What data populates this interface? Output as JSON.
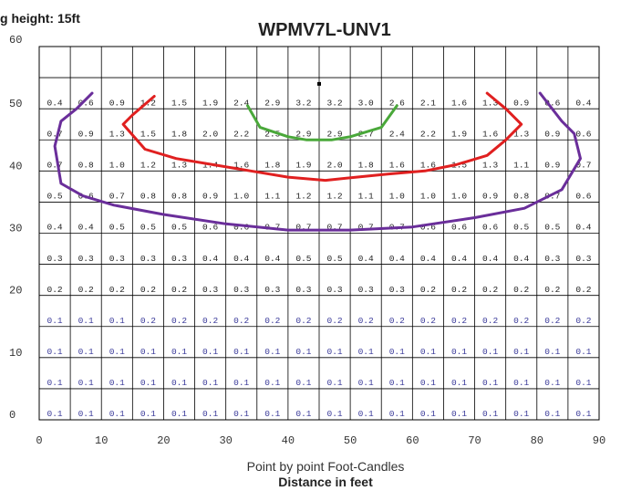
{
  "mount_label": "g height: 15ft",
  "chart_data": {
    "type": "heatmap",
    "title": "WPMV7L-UNV1",
    "subtitle": "Point by point Foot-Candles",
    "xlabel": "Distance in feet",
    "ylabel": "",
    "xlim": [
      0,
      90
    ],
    "ylim": [
      0,
      60
    ],
    "x_ticks": [
      0,
      10,
      20,
      30,
      40,
      50,
      60,
      70,
      80,
      90
    ],
    "y_ticks": [
      0,
      10,
      20,
      30,
      40,
      50,
      60
    ],
    "grid": true,
    "columns_x": [
      2.5,
      7.5,
      12.5,
      17.5,
      22.5,
      27.5,
      32.5,
      37.5,
      42.5,
      47.5,
      52.5,
      57.5,
      62.5,
      67.5,
      72.5,
      77.5,
      82.5,
      87.5
    ],
    "rows": [
      {
        "y": 51,
        "values": [
          "0.4",
          "0.6",
          "0.9",
          "1.2",
          "1.5",
          "1.9",
          "2.4",
          "2.9",
          "3.2",
          "3.2",
          "3.0",
          "2.6",
          "2.1",
          "1.6",
          "1.3",
          "0.9",
          "0.6",
          "0.4"
        ]
      },
      {
        "y": 46,
        "values": [
          "0.7",
          "0.9",
          "1.3",
          "1.5",
          "1.8",
          "2.0",
          "2.2",
          "2.5",
          "2.9",
          "2.9",
          "2.7",
          "2.4",
          "2.2",
          "1.9",
          "1.6",
          "1.3",
          "0.9",
          "0.6"
        ]
      },
      {
        "y": 41,
        "values": [
          "0.7",
          "0.8",
          "1.0",
          "1.2",
          "1.3",
          "1.4",
          "1.6",
          "1.8",
          "1.9",
          "2.0",
          "1.8",
          "1.6",
          "1.6",
          "1.5",
          "1.3",
          "1.1",
          "0.9",
          "0.7"
        ]
      },
      {
        "y": 36,
        "values": [
          "0.5",
          "0.6",
          "0.7",
          "0.8",
          "0.8",
          "0.9",
          "1.0",
          "1.1",
          "1.2",
          "1.2",
          "1.1",
          "1.0",
          "1.0",
          "1.0",
          "0.9",
          "0.8",
          "0.7",
          "0.6"
        ]
      },
      {
        "y": 31,
        "values": [
          "0.4",
          "0.4",
          "0.5",
          "0.5",
          "0.5",
          "0.6",
          "0.6",
          "0.7",
          "0.7",
          "0.7",
          "0.7",
          "0.7",
          "0.6",
          "0.6",
          "0.6",
          "0.5",
          "0.5",
          "0.4"
        ]
      },
      {
        "y": 26,
        "values": [
          "0.3",
          "0.3",
          "0.3",
          "0.3",
          "0.3",
          "0.4",
          "0.4",
          "0.4",
          "0.5",
          "0.5",
          "0.4",
          "0.4",
          "0.4",
          "0.4",
          "0.4",
          "0.4",
          "0.3",
          "0.3"
        ]
      },
      {
        "y": 21,
        "values": [
          "0.2",
          "0.2",
          "0.2",
          "0.2",
          "0.2",
          "0.3",
          "0.3",
          "0.3",
          "0.3",
          "0.3",
          "0.3",
          "0.3",
          "0.2",
          "0.2",
          "0.2",
          "0.2",
          "0.2",
          "0.2"
        ]
      },
      {
        "y": 16,
        "values": [
          "0.1",
          "0.1",
          "0.1",
          "0.2",
          "0.2",
          "0.2",
          "0.2",
          "0.2",
          "0.2",
          "0.2",
          "0.2",
          "0.2",
          "0.2",
          "0.2",
          "0.2",
          "0.2",
          "0.2",
          "0.2"
        ]
      },
      {
        "y": 11,
        "values": [
          "0.1",
          "0.1",
          "0.1",
          "0.1",
          "0.1",
          "0.1",
          "0.1",
          "0.1",
          "0.1",
          "0.1",
          "0.1",
          "0.1",
          "0.1",
          "0.1",
          "0.1",
          "0.1",
          "0.1",
          "0.1"
        ]
      },
      {
        "y": 6,
        "values": [
          "0.1",
          "0.1",
          "0.1",
          "0.1",
          "0.1",
          "0.1",
          "0.1",
          "0.1",
          "0.1",
          "0.1",
          "0.1",
          "0.1",
          "0.1",
          "0.1",
          "0.1",
          "0.1",
          "0.1",
          "0.1"
        ]
      },
      {
        "y": 1,
        "values": [
          "0.1",
          "0.1",
          "0.1",
          "0.1",
          "0.1",
          "0.1",
          "0.1",
          "0.1",
          "0.1",
          "0.1",
          "0.1",
          "0.1",
          "0.1",
          "0.1",
          "0.1",
          "0.1",
          "0.1",
          "0.1"
        ]
      }
    ],
    "low_value_color": "#3a3a9a",
    "value_color": "#222222",
    "fixture_marker": {
      "x": 45,
      "y": 54
    },
    "isolines": [
      {
        "color": "#4aa83a",
        "points": [
          [
            33.5,
            50.5
          ],
          [
            35.5,
            47
          ],
          [
            40,
            45.5
          ],
          [
            43,
            45
          ],
          [
            47,
            45
          ],
          [
            50,
            45.5
          ],
          [
            55,
            47
          ],
          [
            57.5,
            50.5
          ]
        ]
      },
      {
        "color": "#e02020",
        "points": [
          [
            18.5,
            52
          ],
          [
            15,
            49
          ],
          [
            13.5,
            47.5
          ],
          [
            17,
            43.5
          ],
          [
            22,
            42
          ],
          [
            28,
            41
          ],
          [
            34,
            40
          ],
          [
            40,
            39
          ],
          [
            46,
            38.5
          ],
          [
            51,
            39
          ],
          [
            56,
            39.5
          ],
          [
            62,
            40
          ],
          [
            67,
            41
          ],
          [
            72,
            42.5
          ],
          [
            75,
            45
          ],
          [
            77.5,
            47.5
          ],
          [
            75,
            50
          ],
          [
            72,
            52.5
          ]
        ]
      },
      {
        "color": "#6a2e9a",
        "points": [
          [
            8.5,
            52.5
          ],
          [
            6,
            50
          ],
          [
            3.5,
            48
          ],
          [
            2.5,
            44
          ],
          [
            3.5,
            38
          ],
          [
            7,
            36
          ],
          [
            12,
            34.5
          ],
          [
            20,
            33
          ],
          [
            30,
            31.5
          ],
          [
            40,
            30.5
          ],
          [
            50,
            30.5
          ],
          [
            60,
            31
          ],
          [
            70,
            32.5
          ],
          [
            78,
            34
          ],
          [
            84,
            37
          ],
          [
            87,
            42
          ],
          [
            86,
            46
          ],
          [
            84,
            48
          ],
          [
            80.5,
            52.5
          ]
        ]
      }
    ]
  }
}
